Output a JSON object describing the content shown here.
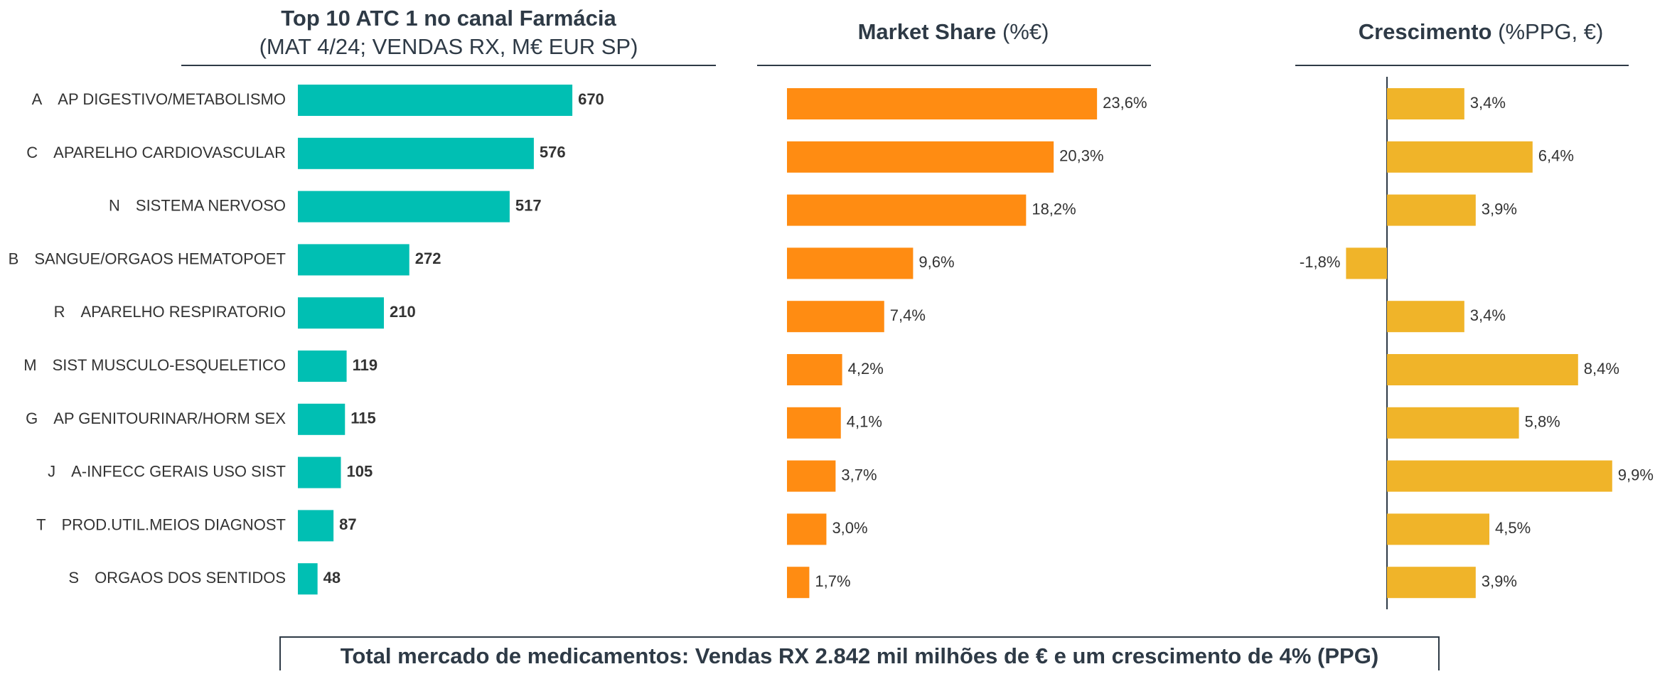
{
  "chart_data": [
    {
      "type": "bar",
      "orientation": "horizontal",
      "title": "Top 10 ATC 1 no canal Farmácia",
      "subtitle": "(MAT 4/24; VENDAS RX, M€ EUR SP)",
      "codes": [
        "A",
        "C",
        "N",
        "B",
        "R",
        "M",
        "G",
        "J",
        "T",
        "S"
      ],
      "categories": [
        "AP DIGESTIVO/METABOLISMO",
        "APARELHO CARDIOVASCULAR",
        "SISTEMA NERVOSO",
        "SANGUE/ORGAOS HEMATOPOET",
        "APARELHO RESPIRATORIO",
        "SIST MUSCULO-ESQUELETICO",
        "AP GENITOURINAR/HORM SEX",
        "A-INFECC GERAIS USO SIST",
        "PROD.UTIL.MEIOS DIAGNOST",
        "ORGAOS DOS SENTIDOS"
      ],
      "values": [
        670,
        576,
        517,
        272,
        210,
        119,
        115,
        105,
        87,
        48
      ],
      "color": "#00bfb3",
      "xlim": [
        0,
        800
      ]
    },
    {
      "type": "bar",
      "orientation": "horizontal",
      "title": "Market Share",
      "subtitle": "(%€)",
      "values": [
        23.6,
        20.3,
        18.2,
        9.6,
        7.4,
        4.2,
        4.1,
        3.7,
        3.0,
        1.7
      ],
      "value_labels": [
        "23,6%",
        "20,3%",
        "18,2%",
        "9,6%",
        "7,4%",
        "4,2%",
        "4,1%",
        "3,7%",
        "3,0%",
        "1,7%"
      ],
      "color": "#ff8c12",
      "xlim": [
        0,
        25
      ]
    },
    {
      "type": "bar",
      "orientation": "horizontal",
      "title": "Crescimento",
      "subtitle": "(%PPG, €)",
      "values": [
        3.4,
        6.4,
        3.9,
        -1.8,
        3.4,
        8.4,
        5.8,
        9.9,
        4.5,
        3.9
      ],
      "value_labels": [
        "3,4%",
        "6,4%",
        "3,9%",
        "-1,8%",
        "3,4%",
        "8,4%",
        "5,8%",
        "9,9%",
        "4,5%",
        "3,9%"
      ],
      "color": "#f0b429",
      "xlim": [
        -5,
        10
      ]
    }
  ],
  "footer": "Total mercado de medicamentos: Vendas RX 2.842 mil milhões de € e um crescimento de 4% (PPG)"
}
